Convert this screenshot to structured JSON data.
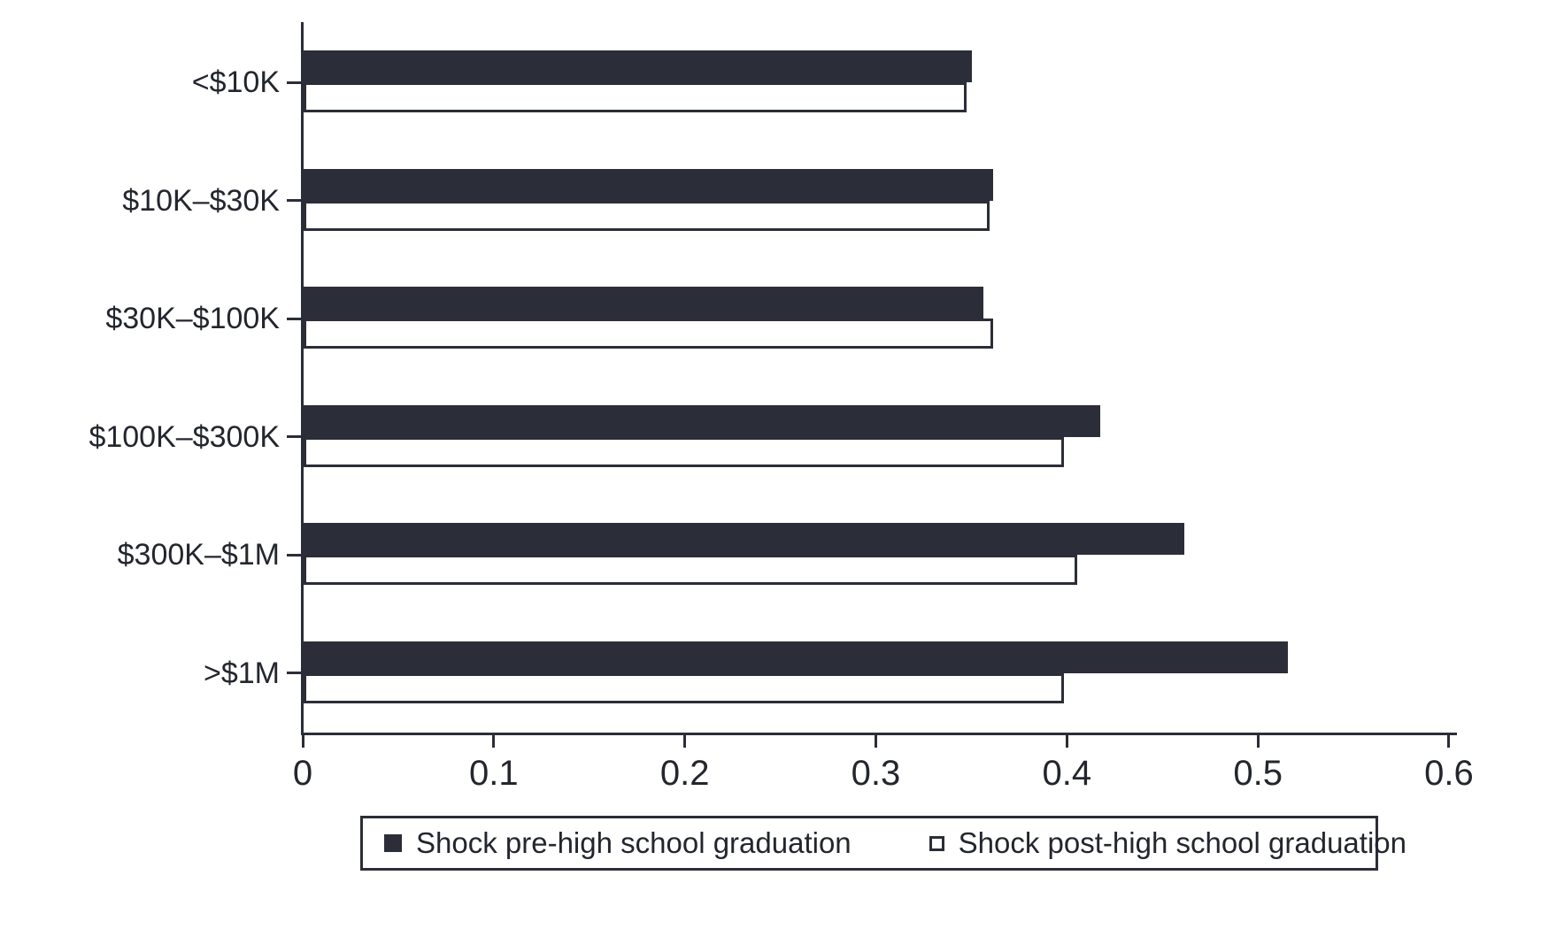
{
  "chart_data": {
    "type": "bar",
    "orientation": "horizontal",
    "title": "",
    "xlabel": "",
    "ylabel": "",
    "xlim": [
      0,
      0.6
    ],
    "grid": false,
    "legend_position": "bottom",
    "categories": [
      "<$10K",
      "$10K–$30K",
      "$30K–$100K",
      "$100K–$300K",
      "$300K–$1M",
      ">$1M"
    ],
    "series": [
      {
        "name": "Shock pre-high school graduation",
        "marker": "filled-square",
        "values": [
          0.35,
          0.361,
          0.356,
          0.417,
          0.461,
          0.515
        ]
      },
      {
        "name": "Shock post-high school graduation",
        "marker": "hollow-square",
        "values": [
          0.347,
          0.359,
          0.361,
          0.398,
          0.405,
          0.398
        ]
      }
    ],
    "x_ticks": [
      {
        "value": 0.0,
        "label": "0"
      },
      {
        "value": 0.1,
        "label": "0.1"
      },
      {
        "value": 0.2,
        "label": "0.2"
      },
      {
        "value": 0.3,
        "label": "0.3"
      },
      {
        "value": 0.4,
        "label": "0.4"
      },
      {
        "value": 0.5,
        "label": "0.5"
      },
      {
        "value": 0.6,
        "label": "0.6"
      }
    ],
    "colors": {
      "filled_bar": "#2b2e38",
      "hollow_bar_fill": "#ffffff",
      "hollow_bar_border": "#2b2e38",
      "axis": "#2b2e38",
      "text": "#23262e",
      "background": "#ffffff"
    }
  }
}
